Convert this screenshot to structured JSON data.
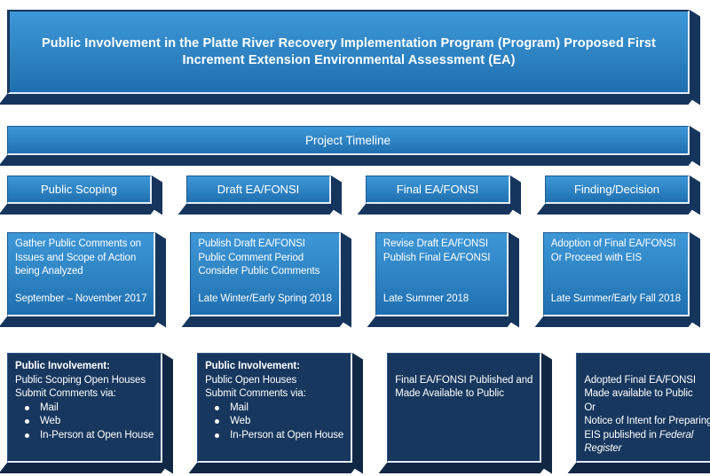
{
  "colors": {
    "page_bg": "#ffffff",
    "text": "#ffffff",
    "accent_top": "#3e97d7",
    "accent_mid": "#2e84c3",
    "accent_bottom": "#1f6fb0",
    "navy": "#17375e",
    "navy_side": "#16355d",
    "navy_dark_side": "#112845",
    "edge_light": "#e3ecf6",
    "border_dark": "#1c5a8e"
  },
  "title_banner": {
    "text": "Public Involvement in the Platte River Recovery Implementation Program (Program) Proposed First Increment Extension Environmental Assessment (EA)"
  },
  "timeline_banner": {
    "text": "Project Timeline"
  },
  "columns": [
    {
      "header": "Public Scoping",
      "middle": {
        "lines": [
          "Gather Public Comments on",
          "Issues and Scope of Action",
          "being Analyzed"
        ],
        "date": "September – November 2017"
      },
      "bottom": {
        "lines": [
          {
            "text": "Public Involvement:",
            "bold": true
          },
          {
            "text": "Public Scoping Open Houses"
          },
          {
            "text": "Submit Comments via:"
          },
          {
            "text": "Mail",
            "bullet": true
          },
          {
            "text": "Web",
            "bullet": true
          },
          {
            "text": "In-Person at Open House",
            "bullet": true
          }
        ]
      }
    },
    {
      "header": "Draft EA/FONSI",
      "middle": {
        "lines": [
          "Publish Draft EA/FONSI",
          "Public Comment Period",
          "Consider Public Comments"
        ],
        "date": "Late Winter/Early Spring 2018"
      },
      "bottom": {
        "lines": [
          {
            "text": "Public Involvement:",
            "bold": true
          },
          {
            "text": "Public Open Houses"
          },
          {
            "text": "Submit Comments via:"
          },
          {
            "text": "Mail",
            "bullet": true
          },
          {
            "text": "Web",
            "bullet": true
          },
          {
            "text": "In-Person at Open House",
            "bullet": true
          }
        ]
      }
    },
    {
      "header": "Final EA/FONSI",
      "middle": {
        "lines": [
          "Revise Draft EA/FONSI",
          "Publish Final EA/FONSI"
        ],
        "date": "Late Summer 2018"
      },
      "bottom": {
        "lines": [
          {
            "text": ""
          },
          {
            "text": "Final EA/FONSI Published and"
          },
          {
            "text": "Made Available to Public"
          }
        ]
      }
    },
    {
      "header": "Finding/Decision",
      "middle": {
        "lines": [
          "Adoption of Final EA/FONSI",
          "Or Proceed with EIS"
        ],
        "date": "Late Summer/Early Fall 2018"
      },
      "bottom": {
        "lines": [
          {
            "text": ""
          },
          {
            "text": "Adopted Final EA/FONSI"
          },
          {
            "text": "Made available to Public"
          },
          {
            "text": "Or"
          },
          {
            "text": "Notice of Intent for Preparing"
          },
          {
            "segs": [
              {
                "t": "EIS published in "
              },
              {
                "t": "Federal",
                "i": true
              }
            ]
          },
          {
            "segs": [
              {
                "t": "Register",
                "i": true
              }
            ]
          }
        ]
      }
    }
  ]
}
